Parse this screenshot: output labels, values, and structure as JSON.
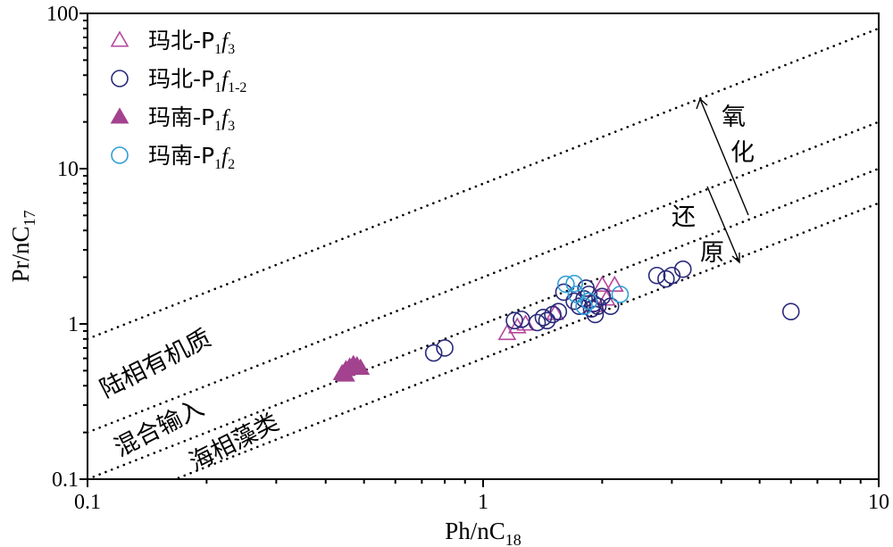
{
  "chart_data": {
    "type": "scatter",
    "x_scale": "log",
    "y_scale": "log",
    "xlim": [
      0.1,
      10
    ],
    "ylim": [
      0.1,
      100
    ],
    "xlabel": {
      "main": "Ph/nC",
      "sub": "18"
    },
    "ylabel": {
      "main": "Pr/nC",
      "sub": "17"
    },
    "x_ticks": [
      {
        "v": 0.1,
        "label": "0.1"
      },
      {
        "v": 1,
        "label": "1"
      },
      {
        "v": 10,
        "label": "10"
      }
    ],
    "y_ticks": [
      {
        "v": 0.1,
        "label": "0.1"
      },
      {
        "v": 1,
        "label": "1"
      },
      {
        "v": 10,
        "label": "10"
      },
      {
        "v": 100,
        "label": "100"
      }
    ],
    "grid": false,
    "legend_position": "top-left",
    "series": [
      {
        "name": "玛北-P1f3",
        "legend": {
          "prefix": "玛北-P",
          "sub1": "1",
          "f": "f",
          "sub2": "3"
        },
        "marker": "triangle-open",
        "color": "#b5479b",
        "points": [
          [
            1.15,
            0.87
          ],
          [
            1.22,
            0.96
          ],
          [
            1.28,
            1.0
          ],
          [
            1.52,
            1.17
          ],
          [
            1.92,
            1.32
          ],
          [
            2.0,
            1.78
          ],
          [
            2.15,
            1.78
          ],
          [
            2.05,
            1.45
          ]
        ]
      },
      {
        "name": "玛北-P1f1-2",
        "legend": {
          "prefix": "玛北-P",
          "sub1": "1",
          "f": "f",
          "sub2": "1-2"
        },
        "marker": "circle-open",
        "color": "#2b2a7a",
        "points": [
          [
            0.75,
            0.65
          ],
          [
            0.8,
            0.7
          ],
          [
            1.2,
            1.05
          ],
          [
            1.25,
            1.07
          ],
          [
            1.37,
            1.02
          ],
          [
            1.42,
            1.1
          ],
          [
            1.45,
            1.05
          ],
          [
            1.5,
            1.15
          ],
          [
            1.55,
            1.2
          ],
          [
            1.6,
            1.6
          ],
          [
            1.7,
            1.4
          ],
          [
            1.75,
            1.3
          ],
          [
            1.8,
            1.45
          ],
          [
            1.85,
            1.55
          ],
          [
            1.9,
            1.35
          ],
          [
            1.95,
            1.3
          ],
          [
            1.88,
            1.25
          ],
          [
            1.82,
            1.7
          ],
          [
            1.92,
            1.15
          ],
          [
            2.0,
            1.5
          ],
          [
            2.1,
            1.3
          ],
          [
            2.75,
            2.05
          ],
          [
            2.9,
            1.95
          ],
          [
            3.0,
            2.05
          ],
          [
            3.2,
            2.25
          ],
          [
            6.0,
            1.2
          ]
        ]
      },
      {
        "name": "玛南-P1f3",
        "legend": {
          "prefix": "玛南-P",
          "sub1": "1",
          "f": "f",
          "sub2": "3"
        },
        "marker": "triangle-filled",
        "color": "#a3428f",
        "points": [
          [
            0.44,
            0.48
          ],
          [
            0.45,
            0.51
          ],
          [
            0.46,
            0.53
          ],
          [
            0.47,
            0.55
          ],
          [
            0.48,
            0.54
          ],
          [
            0.49,
            0.52
          ],
          [
            0.45,
            0.47
          ]
        ]
      },
      {
        "name": "玛南-P1f2",
        "legend": {
          "prefix": "玛南-P",
          "sub1": "1",
          "f": "f",
          "sub2": "2"
        },
        "marker": "circle-open",
        "color": "#2f9fd6",
        "points": [
          [
            1.62,
            1.8
          ],
          [
            1.7,
            1.82
          ],
          [
            1.72,
            1.55
          ],
          [
            1.8,
            1.3
          ],
          [
            1.85,
            1.4
          ],
          [
            2.22,
            1.55
          ]
        ]
      }
    ],
    "reference_lines": [
      {
        "name": "upper",
        "x": [
          0.1,
          10
        ],
        "y": [
          0.8,
          80
        ]
      },
      {
        "name": "middle",
        "x": [
          0.1,
          10
        ],
        "y": [
          0.2,
          20
        ]
      },
      {
        "name": "lower",
        "x": [
          0.1,
          10
        ],
        "y": [
          0.1,
          10
        ]
      },
      {
        "name": "lowest",
        "x": [
          0.1,
          10
        ],
        "y": [
          0.06,
          6
        ]
      }
    ],
    "annotations": {
      "zone_upper": "陆相有机质",
      "zone_middle": "混合输入",
      "zone_lower": "海相藻类",
      "oxidation": [
        "氧",
        "化"
      ],
      "reduction": [
        "还",
        "原"
      ]
    }
  }
}
